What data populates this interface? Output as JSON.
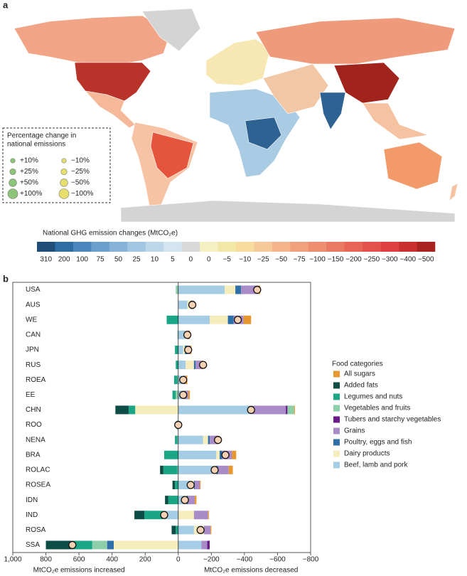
{
  "map": {
    "panel_label": "a",
    "size_legend": {
      "title_lines": [
        "Percentage change in",
        "national emissions"
      ],
      "items": [
        {
          "value": 10,
          "label": "+10%",
          "color": "#8cc57a"
        },
        {
          "value": 25,
          "label": "+25%",
          "color": "#8cc57a"
        },
        {
          "value": 50,
          "label": "+50%",
          "color": "#8cc57a"
        },
        {
          "value": 100,
          "label": "+100%",
          "color": "#8cc57a"
        },
        {
          "value": -10,
          "label": "−10%",
          "color": "#e6df6e"
        },
        {
          "value": -25,
          "label": "−25%",
          "color": "#e6df6e"
        },
        {
          "value": -50,
          "label": "−50%",
          "color": "#e6df6e"
        },
        {
          "value": -100,
          "label": "−100%",
          "color": "#e6df6e"
        }
      ]
    },
    "colorbar": {
      "title": "National GHG emission changes (MtCO₂e)",
      "items": [
        {
          "label": "310",
          "color": "#1f4e79"
        },
        {
          "label": "200",
          "color": "#2e6da4"
        },
        {
          "label": "100",
          "color": "#4a86bd"
        },
        {
          "label": "75",
          "color": "#6b9fcc"
        },
        {
          "label": "50",
          "color": "#86b3d7"
        },
        {
          "label": "25",
          "color": "#a3c6e2"
        },
        {
          "label": "10",
          "color": "#bcd6ea"
        },
        {
          "label": "5",
          "color": "#d3e5f1"
        },
        {
          "label": "0",
          "color": "#d9d9d9"
        },
        {
          "label": "0",
          "color": "#f5f0c2"
        },
        {
          "label": "−5",
          "color": "#f3e7a8"
        },
        {
          "label": "−10",
          "color": "#f7dc9e"
        },
        {
          "label": "−25",
          "color": "#f6c89a"
        },
        {
          "label": "−50",
          "color": "#f3b48b"
        },
        {
          "label": "−75",
          "color": "#f1a07d"
        },
        {
          "label": "−100",
          "color": "#ee8d70"
        },
        {
          "label": "−150",
          "color": "#ea7963"
        },
        {
          "label": "−200",
          "color": "#e66556"
        },
        {
          "label": "−250",
          "color": "#e2514a"
        },
        {
          "label": "−300",
          "color": "#de3f3f"
        },
        {
          "label": "−400",
          "color": "#c8302d"
        },
        {
          "label": "−500",
          "color": "#a8221f"
        }
      ]
    }
  },
  "chart_data": {
    "type": "diverging_bar",
    "panel_label": "b",
    "categories": [
      "USA",
      "AUS",
      "WE",
      "CAN",
      "JPN",
      "RUS",
      "ROEA",
      "EE",
      "CHN",
      "ROO",
      "NENA",
      "BRA",
      "ROLAC",
      "ROSEA",
      "IDN",
      "IND",
      "ROSA",
      "SSA"
    ],
    "xlim": [
      1000,
      -800
    ],
    "xticks": [
      {
        "value": 1000,
        "label": "1,000"
      },
      800,
      600,
      400,
      200,
      0,
      {
        "value": -200,
        "label": "−200"
      },
      {
        "value": -400,
        "label": "−400"
      },
      {
        "value": -600,
        "label": "−600"
      },
      {
        "value": -800,
        "label": "−800"
      }
    ],
    "xlabel_left": "MtCO₂e emissions increased",
    "xlabel_right": "MtCO₂e emissions decreased",
    "legend_title": "Food categories",
    "series": [
      {
        "name": "All sugars",
        "color": "#e8962e",
        "values": [
          -10,
          -5,
          -45,
          -5,
          -5,
          -10,
          -10,
          -10,
          -5,
          0,
          -5,
          -25,
          -25,
          -5,
          -10,
          -5,
          -5,
          0
        ]
      },
      {
        "name": "Added fats",
        "color": "#0e4d45",
        "values": [
          0,
          0,
          0,
          0,
          0,
          0,
          0,
          0,
          80,
          0,
          0,
          0,
          20,
          15,
          20,
          60,
          25,
          150
        ]
      },
      {
        "name": "Legumes and nuts",
        "color": "#1aa585",
        "values": [
          0,
          0,
          70,
          0,
          20,
          15,
          20,
          20,
          40,
          10,
          15,
          85,
          85,
          20,
          60,
          110,
          15,
          130
        ]
      },
      {
        "name": "Vegetables and fruits",
        "color": "#8ccfa8",
        "values": [
          15,
          0,
          0,
          5,
          0,
          0,
          5,
          15,
          -40,
          0,
          5,
          0,
          5,
          0,
          0,
          20,
          0,
          90
        ]
      },
      {
        "name": "Tubers and starchy vegetables",
        "color": "#6a1b8a",
        "values": [
          0,
          0,
          0,
          0,
          0,
          0,
          0,
          0,
          -10,
          0,
          0,
          0,
          0,
          0,
          0,
          0,
          0,
          -15
        ]
      },
      {
        "name": "Grains",
        "color": "#a98bc7",
        "values": [
          -105,
          -10,
          -60,
          -10,
          -20,
          -35,
          -10,
          -15,
          -200,
          0,
          -50,
          -60,
          -65,
          -30,
          -40,
          -85,
          -40,
          -35
        ]
      },
      {
        "name": "Poultry, eggs and fish",
        "color": "#2f6fa8",
        "values": [
          -35,
          -5,
          -35,
          0,
          -15,
          -10,
          -5,
          -5,
          0,
          0,
          -10,
          -15,
          -10,
          -5,
          -10,
          0,
          0,
          40
        ]
      },
      {
        "name": "Dairy products",
        "color": "#f5eebc",
        "values": [
          -65,
          -20,
          -110,
          -10,
          -10,
          -50,
          -5,
          -10,
          260,
          0,
          -30,
          -20,
          -20,
          -25,
          -10,
          -95,
          -60,
          390
        ]
      },
      {
        "name": "Beef, lamb and pork",
        "color": "#a6cde6",
        "values": [
          -280,
          -55,
          -190,
          -45,
          -30,
          -45,
          -25,
          -30,
          -450,
          -5,
          -150,
          -230,
          -210,
          -70,
          -40,
          75,
          -95,
          -140
        ]
      }
    ],
    "net": {
      "color": "#f6d0b2",
      "values": [
        -477,
        -85,
        -360,
        -55,
        -60,
        -150,
        -30,
        -30,
        -440,
        0,
        -240,
        -285,
        -220,
        -75,
        -40,
        85,
        -135,
        640
      ]
    }
  }
}
